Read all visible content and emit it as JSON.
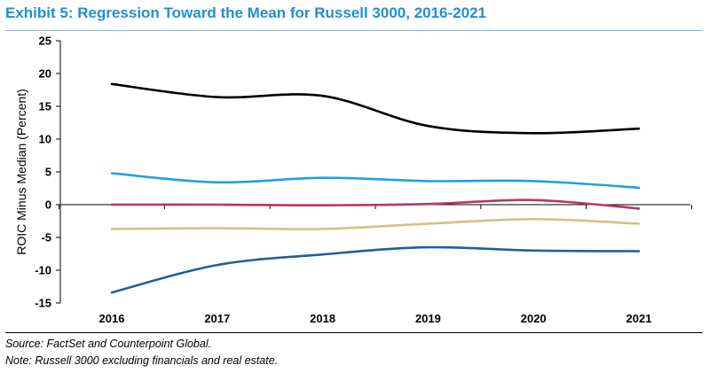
{
  "title": "Exhibit 5: Regression Toward the Mean for Russell 3000, 2016-2021",
  "source": "Source: FactSet and Counterpoint Global.",
  "note": "Note: Russell 3000 excluding financials and real estate.",
  "colors": {
    "title": "#1f8fd6",
    "series": [
      "#000000",
      "#1aa3e0",
      "#b8395a",
      "#d6c07f",
      "#1f5f9e"
    ]
  },
  "chart_data": {
    "type": "line",
    "title": "",
    "xlabel": "",
    "ylabel": "ROIC Minus Median (Percent)",
    "x": [
      "2016",
      "2017",
      "2018",
      "2019",
      "2020",
      "2021"
    ],
    "ylim": [
      -15,
      25
    ],
    "yticks": [
      -15,
      -10,
      -5,
      0,
      5,
      10,
      15,
      20,
      25
    ],
    "grid": false,
    "legend": "none",
    "series": [
      {
        "color": "#000000",
        "values": [
          18.4,
          16.4,
          16.6,
          12.0,
          10.9,
          11.6
        ]
      },
      {
        "color": "#1aa3e0",
        "values": [
          4.8,
          3.4,
          4.1,
          3.6,
          3.6,
          2.6
        ]
      },
      {
        "color": "#b8395a",
        "values": [
          0.0,
          0.0,
          -0.1,
          0.1,
          0.7,
          -0.6
        ]
      },
      {
        "color": "#d6c07f",
        "values": [
          -3.7,
          -3.6,
          -3.7,
          -2.9,
          -2.2,
          -2.9
        ]
      },
      {
        "color": "#1f5f9e",
        "values": [
          -13.4,
          -9.2,
          -7.6,
          -6.5,
          -7.0,
          -7.1
        ]
      }
    ]
  }
}
